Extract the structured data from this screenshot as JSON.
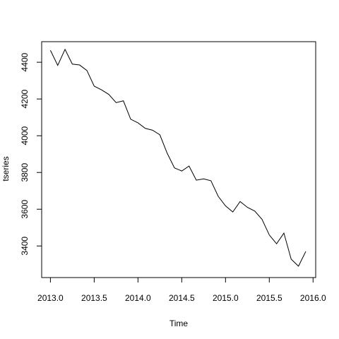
{
  "chart_data": {
    "type": "line",
    "title": "",
    "xlabel": "Time",
    "ylabel": "tseries",
    "xlim": [
      2012.9,
      2016.03
    ],
    "ylim": [
      3228,
      4512
    ],
    "x_ticks": [
      2013.0,
      2013.5,
      2014.0,
      2014.5,
      2015.0,
      2015.5,
      2016.0
    ],
    "x_tick_labels": [
      "2013.0",
      "2013.5",
      "2014.0",
      "2014.5",
      "2015.0",
      "2015.5",
      "2016.0"
    ],
    "y_ticks": [
      3400,
      3600,
      3800,
      4000,
      4200,
      4400
    ],
    "y_tick_labels": [
      "3400",
      "3600",
      "3800",
      "4000",
      "4200",
      "4400"
    ],
    "grid": false,
    "legend": "none",
    "line_color": "#000000",
    "series": [
      {
        "x_start": 2013.0,
        "x_step": 0.0833333,
        "values": [
          4465,
          4383,
          4470,
          4390,
          4385,
          4355,
          4270,
          4250,
          4225,
          4180,
          4190,
          4090,
          4070,
          4040,
          4030,
          4005,
          3905,
          3825,
          3808,
          3835,
          3758,
          3765,
          3755,
          3670,
          3618,
          3585,
          3642,
          3610,
          3590,
          3545,
          3460,
          3412,
          3470,
          3328,
          3290,
          3370
        ]
      }
    ]
  }
}
